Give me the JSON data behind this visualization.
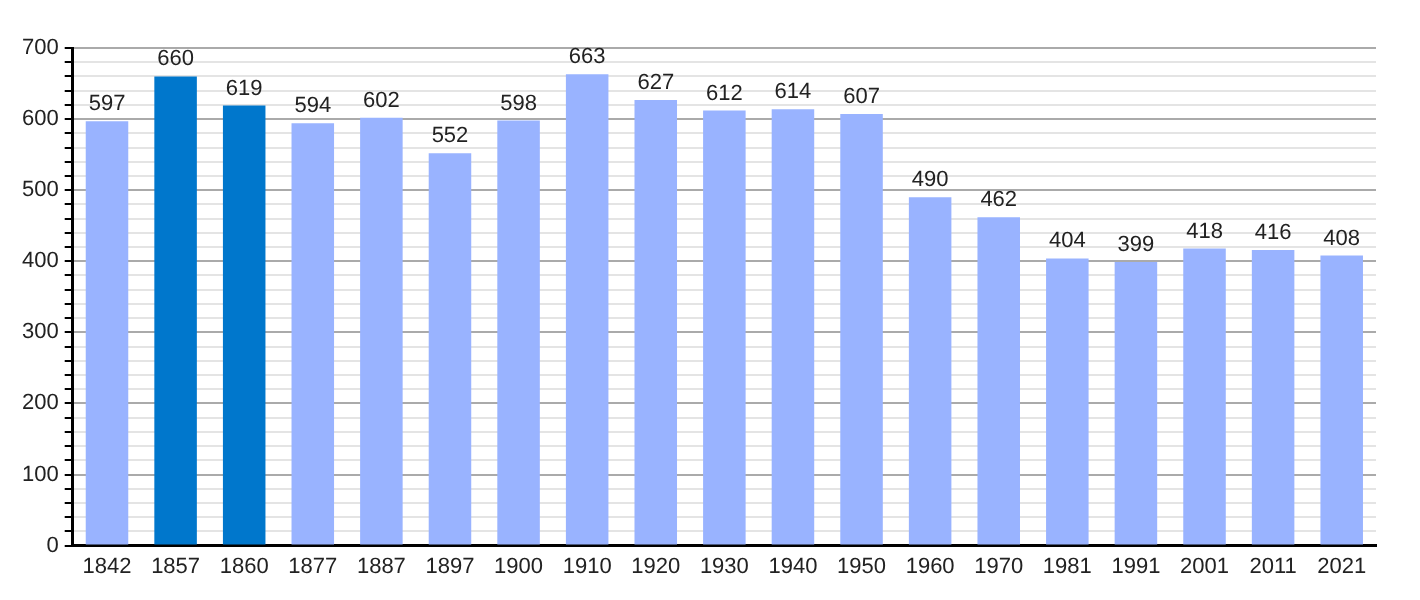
{
  "chart_data": {
    "type": "bar",
    "categories": [
      "1842",
      "1857",
      "1860",
      "1877",
      "1887",
      "1897",
      "1900",
      "1910",
      "1920",
      "1930",
      "1940",
      "1950",
      "1960",
      "1970",
      "1981",
      "1991",
      "2001",
      "2011",
      "2021"
    ],
    "values": [
      597,
      660,
      619,
      594,
      602,
      552,
      598,
      663,
      627,
      612,
      614,
      607,
      490,
      462,
      404,
      399,
      418,
      416,
      408
    ],
    "colors": [
      "#99b3ff",
      "#0077cc",
      "#0077cc",
      "#99b3ff",
      "#99b3ff",
      "#99b3ff",
      "#99b3ff",
      "#99b3ff",
      "#99b3ff",
      "#99b3ff",
      "#99b3ff",
      "#99b3ff",
      "#99b3ff",
      "#99b3ff",
      "#99b3ff",
      "#99b3ff",
      "#99b3ff",
      "#99b3ff",
      "#99b3ff"
    ],
    "ylim": [
      0,
      700
    ],
    "yticks": [
      0,
      {
        "value": 20,
        "label": null
      },
      {
        "value": 40,
        "label": null
      },
      {
        "value": 60,
        "label": null
      },
      {
        "value": 80,
        "label": null
      },
      100,
      {
        "value": 120,
        "label": null
      },
      {
        "value": 140,
        "label": null
      },
      {
        "value": 160,
        "label": null
      },
      {
        "value": 180,
        "label": null
      },
      200,
      {
        "value": 220,
        "label": null
      },
      {
        "value": 240,
        "label": null
      },
      {
        "value": 260,
        "label": null
      },
      {
        "value": 280,
        "label": null
      },
      300,
      {
        "value": 320,
        "label": null
      },
      {
        "value": 340,
        "label": null
      },
      {
        "value": 360,
        "label": null
      },
      {
        "value": 380,
        "label": null
      },
      400,
      {
        "value": 420,
        "label": null
      },
      {
        "value": 440,
        "label": null
      },
      {
        "value": 460,
        "label": null
      },
      {
        "value": 480,
        "label": null
      },
      500,
      {
        "value": 520,
        "label": null
      },
      {
        "value": 540,
        "label": null
      },
      {
        "value": 560,
        "label": null
      },
      {
        "value": 580,
        "label": null
      },
      600,
      {
        "value": 620,
        "label": null
      },
      {
        "value": 640,
        "label": null
      },
      {
        "value": 660,
        "label": null
      },
      {
        "value": 680,
        "label": null
      },
      700
    ],
    "grid": true,
    "data_labels": true
  }
}
